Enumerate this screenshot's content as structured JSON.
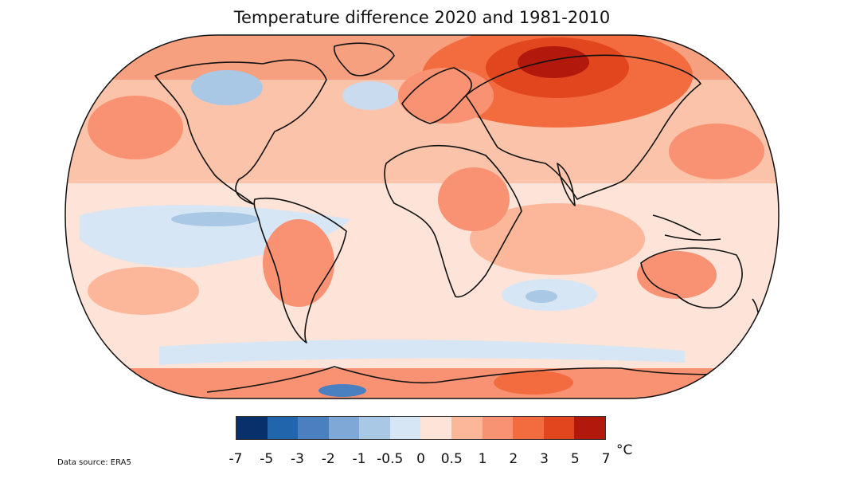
{
  "title": "Temperature difference 2020 and 1981-2010",
  "legend": {
    "unit": "°C",
    "ticks": [
      "-7",
      "-5",
      "-3",
      "-2",
      "-1",
      "-0.5",
      "0",
      "0.5",
      "1",
      "2",
      "3",
      "5",
      "7"
    ],
    "colors": [
      "#08306b",
      "#2166ac",
      "#4a80c0",
      "#7fa8d6",
      "#a9c8e6",
      "#d6e6f4",
      "#fde3d8",
      "#fcb79a",
      "#f99272",
      "#f26c3f",
      "#e1461f",
      "#b2190c"
    ]
  },
  "source": "Data source: ERA5"
}
